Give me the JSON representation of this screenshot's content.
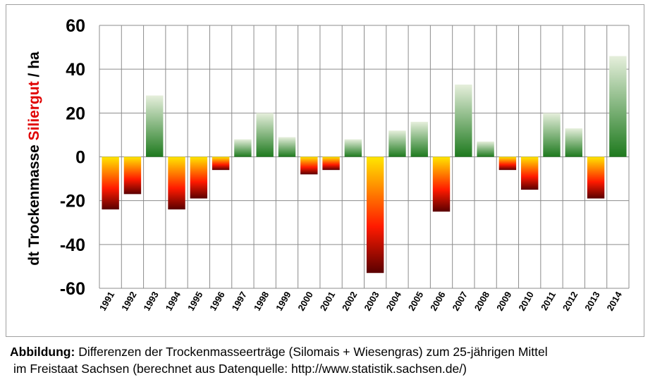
{
  "chart_data": {
    "type": "bar",
    "categories": [
      "1991",
      "1992",
      "1993",
      "1994",
      "1995",
      "1996",
      "1997",
      "1998",
      "1999",
      "2000",
      "2001",
      "2002",
      "2003",
      "2004",
      "2005",
      "2006",
      "2007",
      "2008",
      "2009",
      "2010",
      "2011",
      "2012",
      "2013",
      "2014"
    ],
    "values": [
      -24,
      -17,
      28,
      -24,
      -19,
      -6,
      8,
      20,
      9,
      -8,
      -6,
      8,
      -53,
      12,
      16,
      -25,
      33,
      7,
      -6,
      -15,
      20,
      13,
      -19,
      46
    ],
    "ylim": [
      -60,
      60
    ],
    "yticks": [
      60,
      40,
      20,
      0,
      -20,
      -40,
      -60
    ],
    "ylabel_part1": "dt Trockenmasse ",
    "ylabel_part2": "Siliergut",
    "ylabel_part3": " / ha",
    "grid": true,
    "colors": {
      "positive_top": "#e6efdc",
      "positive_bottom": "#1e7a1e",
      "negative_top": "#ffe600",
      "negative_mid": "#ff1a00",
      "negative_bottom": "#5a0000",
      "ylabel_highlight": "#e00000"
    }
  },
  "caption": {
    "label": "Abbildung:",
    "line1": " Differenzen der Trockenmasseerträge (Silomais + Wiesengras) zum 25-jährigen Mittel",
    "line2": "im Freistaat Sachsen (berechnet aus Datenquelle: http://www.statistik.sachsen.de/)"
  }
}
